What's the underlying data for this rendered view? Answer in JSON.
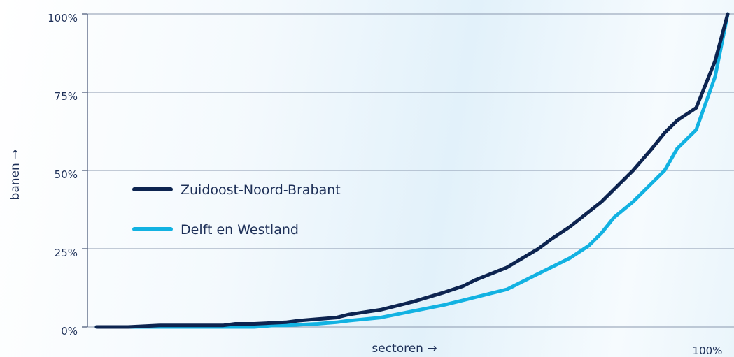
{
  "chart_data": {
    "type": "line",
    "xlabel": "sectoren →",
    "ylabel": "banen →",
    "x_end_label": "100%",
    "y_ticks": [
      {
        "value": 0,
        "label": "0%"
      },
      {
        "value": 25,
        "label": "25%"
      },
      {
        "value": 50,
        "label": "50%"
      },
      {
        "value": 75,
        "label": "75%"
      },
      {
        "value": 100,
        "label": "100%"
      }
    ],
    "xlim": [
      0,
      100
    ],
    "ylim": [
      0,
      100
    ],
    "grid": true,
    "legend_position": "left-middle",
    "series": [
      {
        "name": "Zuidoost-Noord-Brabant",
        "color": "#0d2450",
        "x": [
          0,
          5,
          10,
          15,
          20,
          22,
          25,
          30,
          32,
          35,
          38,
          40,
          45,
          50,
          55,
          58,
          60,
          65,
          70,
          72,
          75,
          80,
          85,
          88,
          90,
          92,
          95,
          96,
          98,
          100
        ],
        "y": [
          0,
          0,
          0.5,
          0.5,
          0.5,
          1,
          1,
          1.5,
          2,
          2.5,
          3,
          4,
          5.5,
          8,
          11,
          13,
          15,
          19,
          25,
          28,
          32,
          40,
          50,
          57,
          62,
          66,
          70,
          75,
          85,
          100
        ]
      },
      {
        "name": "Delft en Westland",
        "color": "#12b2e2",
        "x": [
          0,
          5,
          10,
          15,
          20,
          25,
          28,
          30,
          35,
          38,
          40,
          45,
          50,
          55,
          58,
          60,
          65,
          70,
          72,
          75,
          78,
          80,
          82,
          85,
          88,
          90,
          92,
          95,
          98,
          100
        ],
        "y": [
          0,
          0,
          0,
          0,
          0,
          0,
          0.5,
          0.5,
          1,
          1.5,
          2,
          3,
          5,
          7,
          8.5,
          9.5,
          12,
          17,
          19,
          22,
          26,
          30,
          35,
          40,
          46,
          50,
          57,
          63,
          80,
          100
        ]
      }
    ]
  }
}
